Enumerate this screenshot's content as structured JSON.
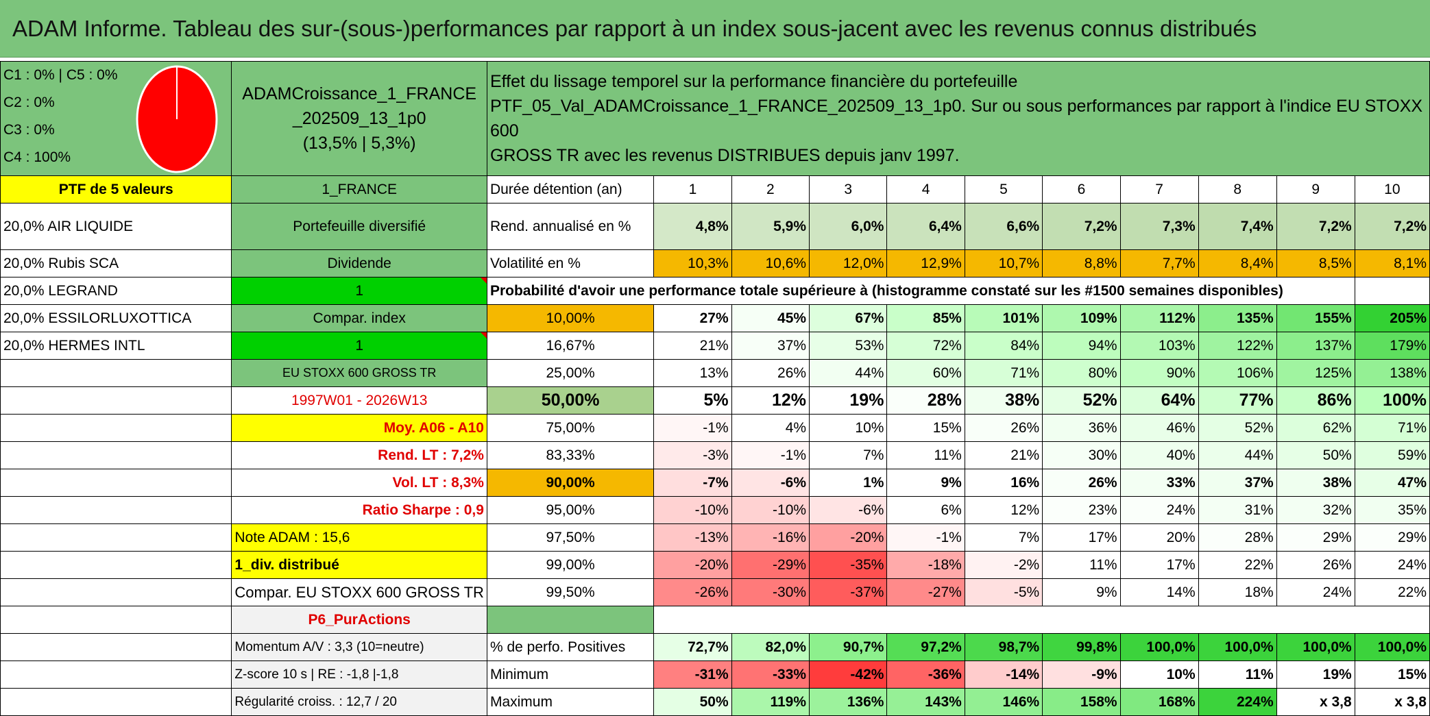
{
  "title": "ADAM Informe. Tableau des sur-(sous-)performances par rapport à un index sous-jacent avec les revenus connus distribués",
  "categories": [
    "C1 : 0% | C5 : 0%",
    "C2 : 0%",
    "C3 : 0%",
    "C4 : 100%"
  ],
  "portfolio": {
    "name_line1": "ADAMCroissance_1_FRANCE",
    "name_line2": "_202509_13_1p0",
    "name_line3": "(13,5% | 5,3%)",
    "description_line1": "Effet du lissage temporel sur la performance financière du portefeuille",
    "description_line2": "PTF_05_Val_ADAMCroissance_1_FRANCE_202509_13_1p0. Sur ou sous performances par rapport à l'indice EU STOXX 600",
    "description_line3": "GROSS TR avec les revenus DISTRIBUES depuis janv 1997."
  },
  "left": {
    "ptf_label": "PTF de 5 valeurs",
    "holdings": [
      "20,0% AIR LIQUIDE",
      "20,0% Rubis SCA",
      "20,0% LEGRAND",
      "20,0% ESSILORLUXOTTICA",
      "20,0% HERMES INTL"
    ]
  },
  "mid": {
    "country": "1_FRANCE",
    "diversified": "Portefeuille diversifié",
    "dividend": "Dividende",
    "one_a": "1",
    "compar_index": "Compar. index",
    "one_b": "1",
    "index_name": "EU STOXX 600 GROSS TR",
    "period": "1997W01 - 2026W13",
    "moy": "Moy. A06 - A10",
    "rend_lt": "Rend. LT : 7,2%",
    "vol_lt": "Vol. LT : 8,3%",
    "sharpe": "Ratio Sharpe : 0,9",
    "note_adam": "Note ADAM : 15,6",
    "div": "1_div. distribué",
    "compar_full": "Compar. EU STOXX 600 GROSS TR",
    "p6": "P6_PurActions",
    "momentum": "Momentum A/V : 3,3 (10=neutre)",
    "zscore": "Z-score 10 s | RE : -1,8 |-1,8",
    "regularite": "Régularité croiss. : 12,7 / 20"
  },
  "table": {
    "duree_label": "Durée détention (an)",
    "years": [
      "1",
      "2",
      "3",
      "4",
      "5",
      "6",
      "7",
      "8",
      "9",
      "10"
    ],
    "rend_label": "Rend. annualisé en %",
    "rend": [
      "4,8%",
      "5,9%",
      "6,0%",
      "6,4%",
      "6,6%",
      "7,2%",
      "7,3%",
      "7,4%",
      "7,2%",
      "7,2%"
    ],
    "vol_label": "Volatilité en %",
    "vol": [
      "10,3%",
      "10,6%",
      "12,0%",
      "12,9%",
      "10,7%",
      "8,8%",
      "7,7%",
      "8,4%",
      "8,5%",
      "8,1%"
    ],
    "prob_header": "Probabilité d'avoir une performance totale supérieure à (histogramme constaté sur les #1500 semaines disponibles)",
    "quantile_rows": [
      {
        "label": "10,00%",
        "values": [
          "27%",
          "45%",
          "67%",
          "85%",
          "101%",
          "109%",
          "112%",
          "135%",
          "155%",
          "205%"
        ]
      },
      {
        "label": "16,67%",
        "values": [
          "21%",
          "37%",
          "53%",
          "72%",
          "84%",
          "94%",
          "103%",
          "122%",
          "137%",
          "179%"
        ]
      },
      {
        "label": "25,00%",
        "values": [
          "13%",
          "26%",
          "44%",
          "60%",
          "71%",
          "80%",
          "90%",
          "106%",
          "125%",
          "138%"
        ]
      },
      {
        "label": "50,00%",
        "values": [
          "5%",
          "12%",
          "19%",
          "28%",
          "38%",
          "52%",
          "64%",
          "77%",
          "86%",
          "100%"
        ]
      },
      {
        "label": "75,00%",
        "values": [
          "-1%",
          "4%",
          "10%",
          "15%",
          "26%",
          "36%",
          "46%",
          "52%",
          "62%",
          "71%"
        ]
      },
      {
        "label": "83,33%",
        "values": [
          "-3%",
          "-1%",
          "7%",
          "11%",
          "21%",
          "30%",
          "40%",
          "44%",
          "50%",
          "59%"
        ]
      },
      {
        "label": "90,00%",
        "values": [
          "-7%",
          "-6%",
          "1%",
          "9%",
          "16%",
          "26%",
          "33%",
          "37%",
          "38%",
          "47%"
        ]
      },
      {
        "label": "95,00%",
        "values": [
          "-10%",
          "-10%",
          "-6%",
          "6%",
          "12%",
          "23%",
          "24%",
          "31%",
          "32%",
          "35%"
        ]
      },
      {
        "label": "97,50%",
        "values": [
          "-13%",
          "-16%",
          "-20%",
          "-1%",
          "7%",
          "17%",
          "20%",
          "28%",
          "29%",
          "29%"
        ]
      },
      {
        "label": "99,00%",
        "values": [
          "-20%",
          "-29%",
          "-35%",
          "-18%",
          "-2%",
          "11%",
          "17%",
          "22%",
          "26%",
          "24%"
        ]
      },
      {
        "label": "99,50%",
        "values": [
          "-26%",
          "-30%",
          "-37%",
          "-27%",
          "-5%",
          "9%",
          "14%",
          "18%",
          "24%",
          "22%"
        ]
      }
    ],
    "pos_label": "% de perfo. Positives",
    "pos": [
      "72,7%",
      "82,0%",
      "90,7%",
      "97,2%",
      "98,7%",
      "99,8%",
      "100,0%",
      "100,0%",
      "100,0%",
      "100,0%"
    ],
    "min_label": "Minimum",
    "min": [
      "-31%",
      "-33%",
      "-42%",
      "-36%",
      "-14%",
      "-9%",
      "10%",
      "11%",
      "19%",
      "15%"
    ],
    "max_label": "Maximum",
    "max": [
      "50%",
      "119%",
      "136%",
      "143%",
      "146%",
      "158%",
      "168%",
      "224%",
      "x 3,8",
      "x 3,8"
    ]
  },
  "colors": {
    "header_green": "#7cc47c",
    "bright_green": "#00d000",
    "yellow": "#ffff00",
    "orange": "#f5b800",
    "pie_red": "#ff0000"
  }
}
